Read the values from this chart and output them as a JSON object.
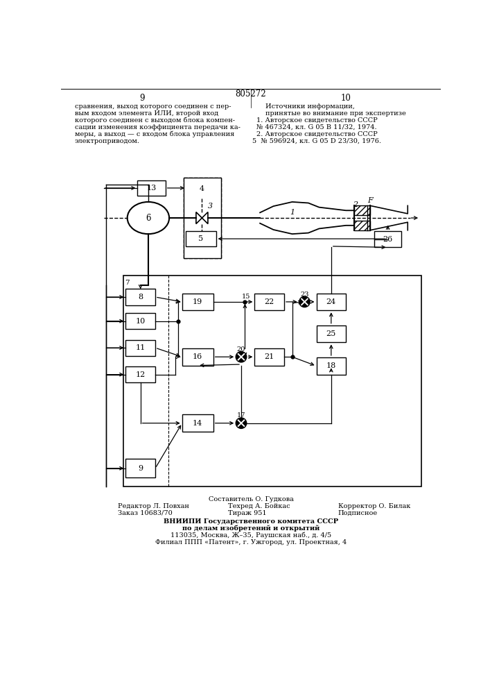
{
  "page_number_left": "9",
  "page_number_right": "10",
  "patent_number": "805272",
  "bg_color": "#ffffff",
  "footer_composer": "Составитель О. Гудкова",
  "footer_editor": "Редактор Л. Повхан",
  "footer_order": "Заказ 10683/70",
  "footer_tech": "Техред А. Бойкас",
  "footer_circulation": "Тираж 951",
  "footer_corrector": "Корректор О. Билак",
  "footer_subscription": "Подписное",
  "footer_institute": "ВНИИПИ Государственного комитета СССР",
  "footer_dept": "по делам изобретений и открытий",
  "footer_address": "113035, Москва, Ж–35, Раушская наб., д. 4/5",
  "footer_branch": "Филиал ППП «Патент», г. Ужгород, ул. Проектная, 4"
}
